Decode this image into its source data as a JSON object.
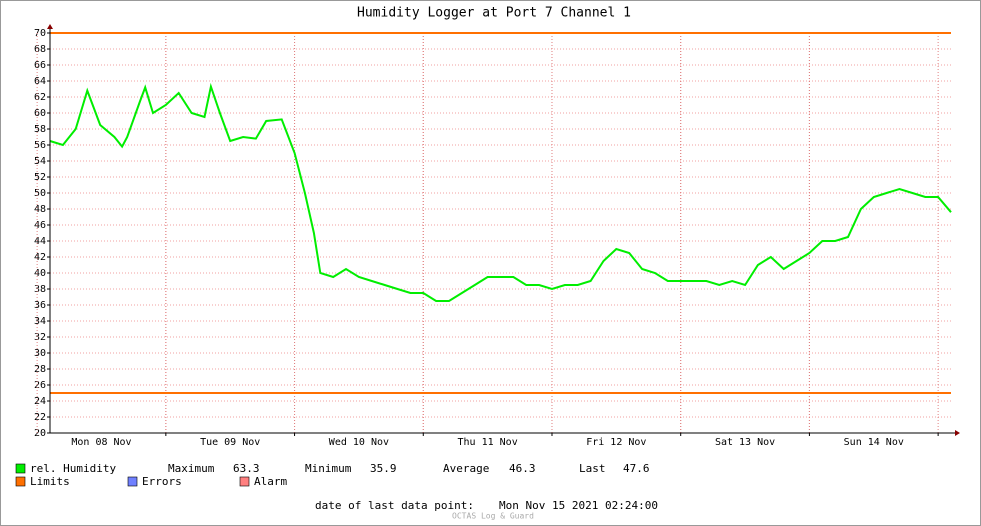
{
  "chart_data": {
    "type": "line",
    "title": "Humidity Logger at Port 7 Channel 1",
    "x": [
      8.1,
      8.2,
      8.3,
      8.39,
      8.49,
      8.6,
      8.66,
      8.7,
      8.8,
      8.84,
      8.9,
      9.0,
      9.1,
      9.2,
      9.3,
      9.35,
      9.42,
      9.5,
      9.6,
      9.7,
      9.78,
      9.9,
      10.0,
      10.08,
      10.15,
      10.2,
      10.3,
      10.4,
      10.5,
      10.6,
      10.7,
      10.8,
      10.9,
      11.0,
      11.1,
      11.2,
      11.3,
      11.4,
      11.5,
      11.6,
      11.7,
      11.8,
      11.9,
      12.0,
      12.1,
      12.2,
      12.3,
      12.4,
      12.5,
      12.6,
      12.7,
      12.8,
      12.9,
      13.0,
      13.1,
      13.2,
      13.3,
      13.4,
      13.5,
      13.6,
      13.7,
      13.8,
      13.9,
      14.0,
      14.1,
      14.2,
      14.3,
      14.4,
      14.5,
      14.6,
      14.7,
      14.8,
      14.9,
      15.0,
      15.1
    ],
    "series": [
      {
        "name": "rel. Humidity",
        "color": "#00ee00",
        "values": [
          56.5,
          56.0,
          58.0,
          62.8,
          58.5,
          57.0,
          55.8,
          57.0,
          61.5,
          63.2,
          60.0,
          61.0,
          62.5,
          60.0,
          59.5,
          63.3,
          60.0,
          56.5,
          57.0,
          56.8,
          59.0,
          59.2,
          55.0,
          50.0,
          45.0,
          40.0,
          39.5,
          40.5,
          39.5,
          39.0,
          38.5,
          38.0,
          37.5,
          37.5,
          36.5,
          36.5,
          37.5,
          38.5,
          39.5,
          39.5,
          39.5,
          38.5,
          38.5,
          38.0,
          38.5,
          38.5,
          39.0,
          41.5,
          43.0,
          42.5,
          40.5,
          40.0,
          39.0,
          39.0,
          39.0,
          39.0,
          38.5,
          39.0,
          38.5,
          41.0,
          42.0,
          40.5,
          41.5,
          42.5,
          44.0,
          44.0,
          44.5,
          48.0,
          49.5,
          50.0,
          50.5,
          50.0,
          49.5,
          49.5,
          47.6
        ]
      }
    ],
    "limits": {
      "name": "Limits",
      "color": "#ff7000",
      "values": [
        70,
        25
      ]
    },
    "legend_extra": [
      {
        "name": "Errors",
        "color": "#7080ff"
      },
      {
        "name": "Alarm",
        "color": "#ff8080"
      }
    ],
    "stats": [
      {
        "label": "Maximum",
        "value": 63.3
      },
      {
        "label": "Minimum",
        "value": 35.9
      },
      {
        "label": "Average",
        "value": 46.3
      },
      {
        "label": "Last",
        "value": 47.6
      }
    ],
    "xlim": [
      8.1,
      15.1
    ],
    "xticks": [
      {
        "value": 8.5,
        "label": "Mon 08 Nov"
      },
      {
        "value": 9.5,
        "label": "Tue 09 Nov"
      },
      {
        "value": 10.5,
        "label": "Wed 10 Nov"
      },
      {
        "value": 11.5,
        "label": "Thu 11 Nov"
      },
      {
        "value": 12.5,
        "label": "Fri 12 Nov"
      },
      {
        "value": 13.5,
        "label": "Sat 13 Nov"
      },
      {
        "value": 14.5,
        "label": "Sun 14 Nov"
      }
    ],
    "ylim": [
      20,
      70
    ],
    "yticks": [
      20,
      22,
      24,
      26,
      28,
      30,
      32,
      34,
      36,
      38,
      40,
      42,
      44,
      46,
      48,
      50,
      52,
      54,
      56,
      58,
      60,
      62,
      64,
      66,
      68,
      70
    ],
    "grid": true,
    "footer": {
      "label": "date of last data point:",
      "value": "Mon Nov 15 2021 02:24:00"
    },
    "watermark": "OCTAS Log & Guard"
  }
}
